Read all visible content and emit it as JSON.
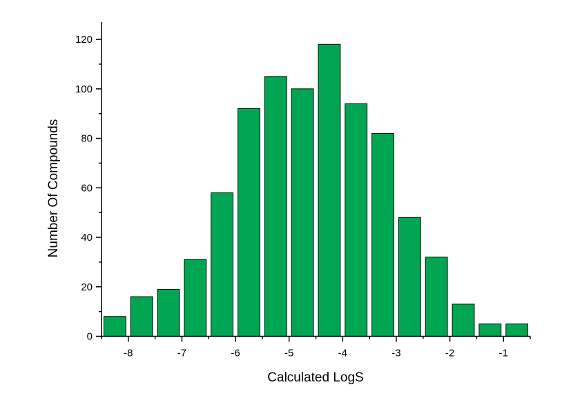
{
  "chart_data": {
    "type": "bar",
    "title": "",
    "xlabel": "Calculated LogS",
    "ylabel": "Number Of Compounds",
    "bin_centers": [
      -8.25,
      -7.75,
      -7.25,
      -6.75,
      -6.25,
      -5.75,
      -5.25,
      -4.75,
      -4.25,
      -3.75,
      -3.25,
      -2.75,
      -2.25,
      -1.75,
      -1.25,
      -0.75
    ],
    "values": [
      8,
      16,
      19,
      31,
      58,
      92,
      105,
      100,
      118,
      94,
      82,
      48,
      32,
      13,
      5,
      5
    ],
    "bin_width": 0.5,
    "xlim": [
      -8.5,
      -0.5
    ],
    "ylim": [
      0,
      127
    ],
    "x_ticks": [
      -8,
      -7,
      -6,
      -5,
      -4,
      -3,
      -2,
      -1
    ],
    "y_ticks": [
      0,
      20,
      40,
      60,
      80,
      100,
      120
    ],
    "bar_color": "#00a651",
    "grid": false,
    "legend": "none"
  }
}
